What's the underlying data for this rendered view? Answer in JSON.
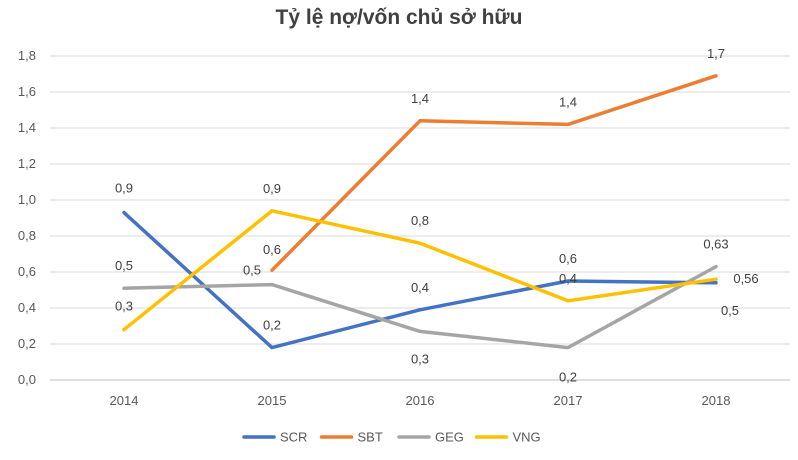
{
  "chart_data": {
    "type": "line",
    "title": "Tỷ lệ nợ/vốn chủ sở hữu",
    "xlabel": "",
    "ylabel": "",
    "categories": [
      "2014",
      "2015",
      "2016",
      "2017",
      "2018"
    ],
    "ylim": [
      0,
      1.8
    ],
    "yticks": [
      "0,0",
      "0,2",
      "0,4",
      "0,6",
      "0,8",
      "1,0",
      "1,2",
      "1,4",
      "1,6",
      "1,8"
    ],
    "grid": true,
    "legend": "bottom",
    "series": [
      {
        "name": "SCR",
        "color": "#4472C4",
        "values": [
          0.93,
          0.18,
          0.39,
          0.55,
          0.54
        ],
        "labels": [
          "0,9",
          "0,2",
          "0,4",
          "0,6",
          "0,5"
        ]
      },
      {
        "name": "SBT",
        "color": "#ED7D31",
        "values": [
          null,
          0.61,
          1.44,
          1.42,
          1.69
        ],
        "labels": [
          null,
          "0,6",
          "1,4",
          "1,4",
          "1,7"
        ]
      },
      {
        "name": "GEG",
        "color": "#A5A5A5",
        "values": [
          0.51,
          0.53,
          0.27,
          0.18,
          0.63
        ],
        "labels": [
          "0,5",
          "0,5",
          "0,3",
          "0,2",
          "0,63"
        ]
      },
      {
        "name": "VNG",
        "color": "#FFC000",
        "values": [
          0.28,
          0.94,
          0.76,
          0.44,
          0.56
        ],
        "labels": [
          "0,3",
          "0,9",
          "0,8",
          "0,4",
          "0,56"
        ]
      }
    ]
  }
}
